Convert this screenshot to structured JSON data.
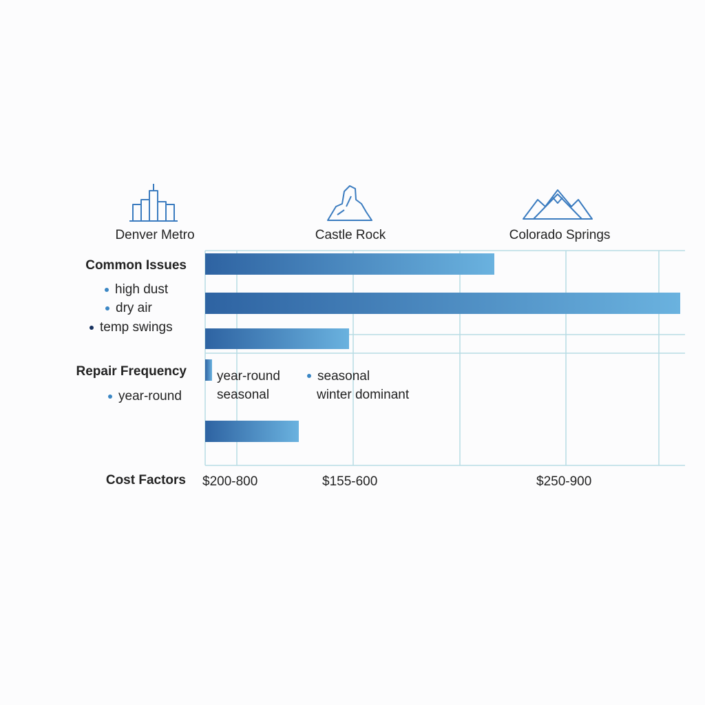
{
  "columns": [
    "Denver Metro",
    "Castle Rock",
    "Colorado Springs"
  ],
  "common_issues": {
    "title": "Common Issues",
    "items": [
      "high dust",
      "dry air",
      "temp swings"
    ]
  },
  "repair_frequency": {
    "title": "Repair Frequency",
    "items": [
      "year-round"
    ],
    "notes": [
      [
        "year-round",
        "seasonal"
      ],
      [
        "seasonal",
        "winter dominant"
      ]
    ]
  },
  "cost_factors": {
    "title": "Cost Factors",
    "values": [
      "$200-800",
      "$155-600",
      "$250-900"
    ]
  }
}
